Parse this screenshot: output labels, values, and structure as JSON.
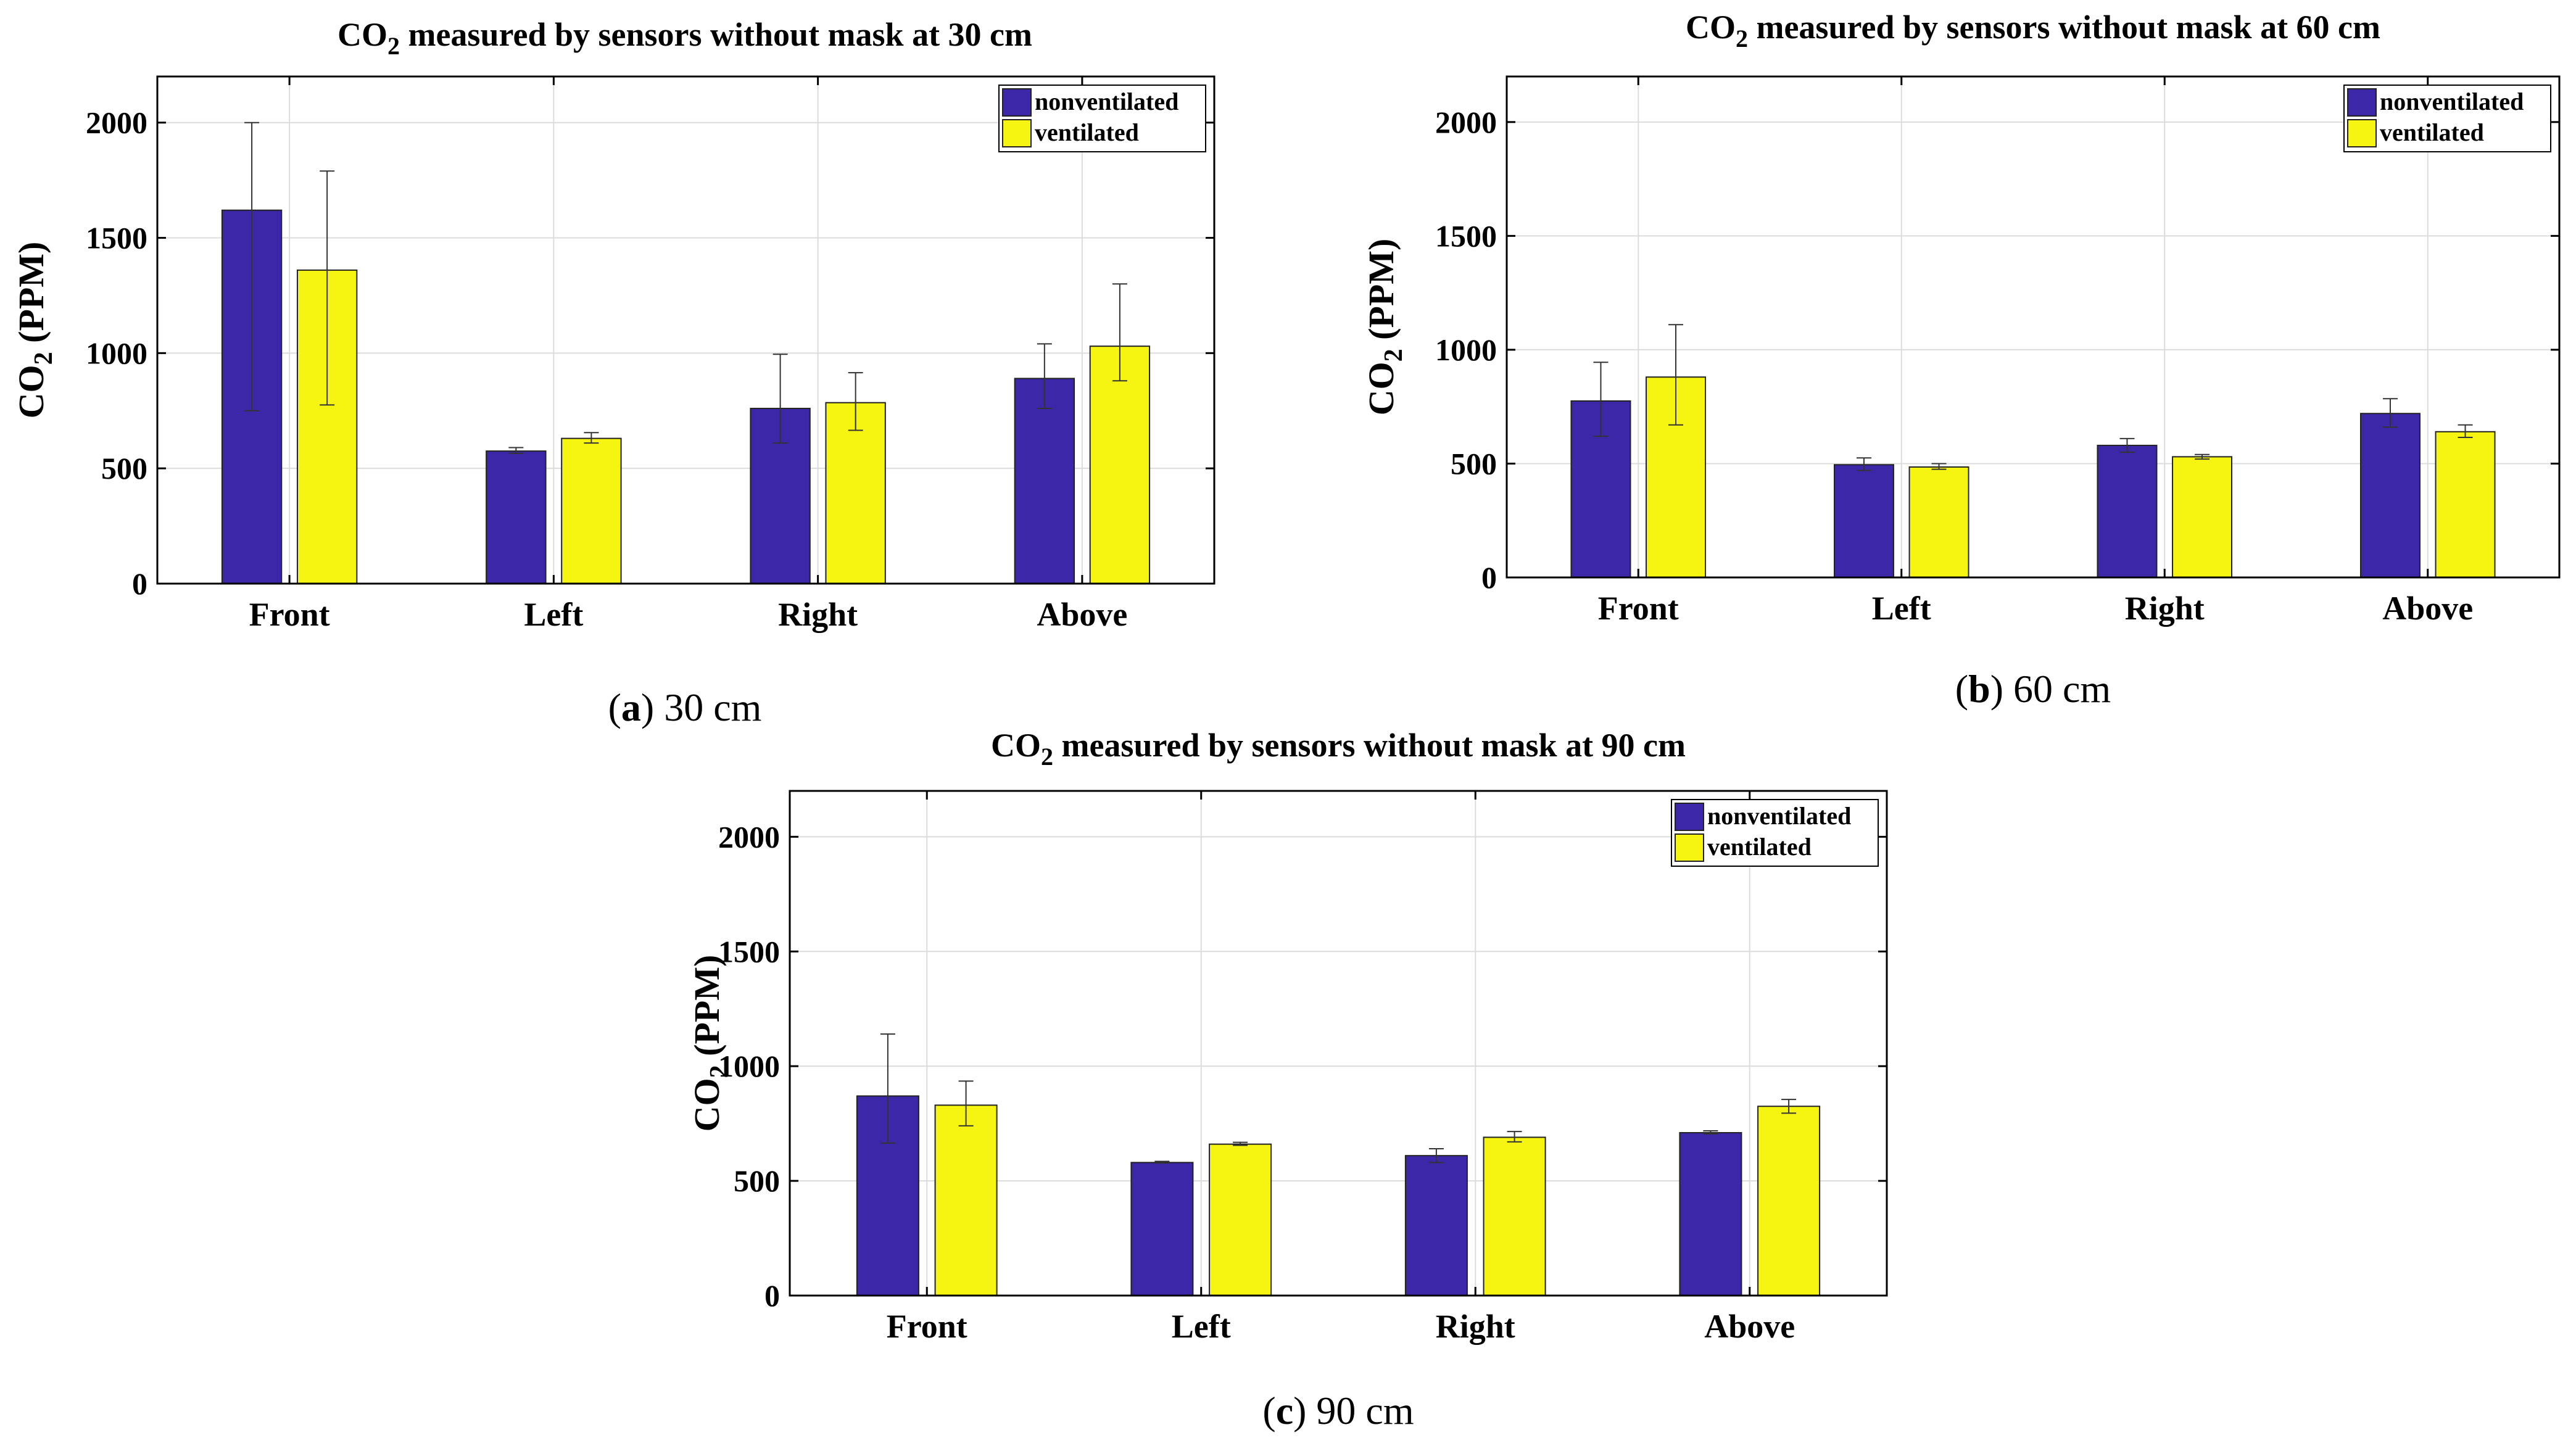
{
  "colors": {
    "nonventilated": "#3c27a8",
    "ventilated": "#f5f511",
    "grid": "#dcdcdc",
    "axis": "#000000"
  },
  "chart_data": [
    {
      "type": "bar",
      "title_prefix": "CO",
      "title_sub": "2",
      "title_suffix": " measured by sensors without mask at 30 cm",
      "ylabel_prefix": "CO",
      "ylabel_sub": "2",
      "ylabel_suffix": " (PPM)",
      "caption_label": "a",
      "caption_text": "30 cm",
      "categories": [
        "Front",
        "Left",
        "Right",
        "Above"
      ],
      "ylim": [
        0,
        2200
      ],
      "yticks": [
        0,
        500,
        1000,
        1500,
        2000
      ],
      "grid": true,
      "legend_position": "top-right",
      "series": [
        {
          "name": "nonventilated",
          "values": [
            1620,
            575,
            760,
            890
          ],
          "err_low": [
            750,
            565,
            610,
            760
          ],
          "err_high": [
            2000,
            590,
            995,
            1040
          ]
        },
        {
          "name": "ventilated",
          "values": [
            1360,
            630,
            785,
            1030
          ],
          "err_low": [
            775,
            610,
            665,
            880
          ],
          "err_high": [
            1790,
            655,
            915,
            1300
          ]
        }
      ]
    },
    {
      "type": "bar",
      "title_prefix": "CO",
      "title_sub": "2",
      "title_suffix": " measured by sensors without mask at 60 cm",
      "ylabel_prefix": "CO",
      "ylabel_sub": "2",
      "ylabel_suffix": " (PPM)",
      "caption_label": "b",
      "caption_text": "60 cm",
      "categories": [
        "Front",
        "Left",
        "Right",
        "Above"
      ],
      "ylim": [
        0,
        2200
      ],
      "yticks": [
        0,
        500,
        1000,
        1500,
        2000
      ],
      "grid": true,
      "legend_position": "top-right",
      "series": [
        {
          "name": "nonventilated",
          "values": [
            775,
            495,
            580,
            720
          ],
          "err_low": [
            620,
            470,
            550,
            660
          ],
          "err_high": [
            945,
            525,
            610,
            785
          ]
        },
        {
          "name": "ventilated",
          "values": [
            880,
            485,
            530,
            640
          ],
          "err_low": [
            670,
            475,
            520,
            615
          ],
          "err_high": [
            1110,
            500,
            540,
            670
          ]
        }
      ]
    },
    {
      "type": "bar",
      "title_prefix": "CO",
      "title_sub": "2",
      "title_suffix": " measured by sensors without mask at 90 cm",
      "ylabel_prefix": "CO",
      "ylabel_sub": "2",
      "ylabel_suffix": " (PPM)",
      "caption_label": "c",
      "caption_text": "90 cm",
      "categories": [
        "Front",
        "Left",
        "Right",
        "Above"
      ],
      "ylim": [
        0,
        2200
      ],
      "yticks": [
        0,
        500,
        1000,
        1500,
        2000
      ],
      "grid": true,
      "legend_position": "top-right",
      "series": [
        {
          "name": "nonventilated",
          "values": [
            870,
            580,
            610,
            710
          ],
          "err_low": [
            665,
            578,
            580,
            705
          ],
          "err_high": [
            1140,
            585,
            640,
            718
          ]
        },
        {
          "name": "ventilated",
          "values": [
            830,
            660,
            690,
            825
          ],
          "err_low": [
            740,
            655,
            670,
            795
          ],
          "err_high": [
            935,
            668,
            715,
            855
          ]
        }
      ]
    }
  ]
}
